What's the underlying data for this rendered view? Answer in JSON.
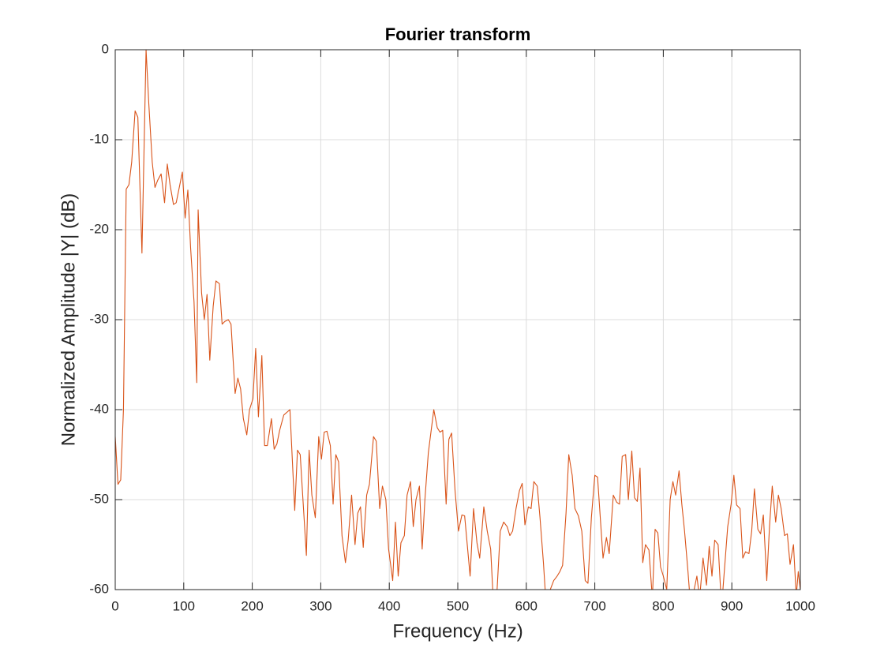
{
  "chart_data": {
    "type": "line",
    "title": "Fourier transform",
    "xlabel": "Frequency (Hz)",
    "ylabel": "Normalized Amplitude |Y| (dB)",
    "x": [
      0,
      4,
      8,
      12,
      16,
      20,
      24,
      29,
      33,
      39,
      45,
      49,
      54,
      58,
      62,
      67,
      72,
      76,
      80,
      85,
      89,
      98,
      102,
      106,
      110,
      115,
      119,
      121,
      126,
      130,
      134,
      138,
      143,
      147,
      152,
      156,
      160,
      165,
      169,
      175,
      179,
      183,
      187,
      192,
      196,
      201,
      205,
      209,
      214,
      218,
      222,
      228,
      232,
      236,
      240,
      246,
      255,
      262,
      266,
      270,
      274,
      279,
      283,
      287,
      292,
      297,
      301,
      305,
      309,
      314,
      318,
      322,
      326,
      331,
      336,
      340,
      345,
      350,
      354,
      358,
      362,
      367,
      371,
      377,
      381,
      386,
      390,
      395,
      399,
      405,
      409,
      413,
      417,
      422,
      426,
      431,
      435,
      439,
      444,
      448,
      452,
      457,
      465,
      470,
      474,
      478,
      483,
      487,
      491,
      496,
      501,
      506,
      510,
      518,
      523,
      528,
      532,
      538,
      543,
      548,
      553,
      557,
      562,
      567,
      572,
      576,
      580,
      585,
      590,
      594,
      598,
      603,
      607,
      611,
      616,
      620,
      625,
      630,
      635,
      640,
      645,
      649,
      653,
      658,
      662,
      667,
      671,
      676,
      681,
      686,
      690,
      695,
      700,
      704,
      708,
      712,
      717,
      721,
      727,
      732,
      736,
      740,
      745,
      749,
      754,
      758,
      762,
      766,
      770,
      774,
      779,
      784,
      788,
      792,
      796,
      800,
      805,
      810,
      814,
      818,
      823,
      827,
      831,
      836,
      840,
      845,
      849,
      853,
      858,
      863,
      867,
      871,
      875,
      880,
      885,
      889,
      894,
      899,
      903,
      907,
      912,
      916,
      920,
      925,
      929,
      933,
      938,
      942,
      946,
      951,
      955,
      959,
      964,
      968,
      972,
      977,
      981,
      985,
      990,
      994,
      997,
      1000
    ],
    "values": [
      -43,
      -48.3,
      -47.8,
      -40,
      -15.5,
      -15,
      -12.5,
      -6.8,
      -7.5,
      -22.6,
      0,
      -6,
      -12.5,
      -15.3,
      -14.5,
      -13.8,
      -17,
      -12.7,
      -15,
      -17.2,
      -17,
      -13.6,
      -18.7,
      -15.6,
      -22,
      -28,
      -37,
      -17.8,
      -27,
      -30,
      -27.2,
      -34.5,
      -28.5,
      -25.7,
      -26,
      -30.5,
      -30.2,
      -30,
      -30.5,
      -38.2,
      -36.5,
      -37.7,
      -41,
      -42.8,
      -40,
      -38.8,
      -33.2,
      -40.8,
      -34,
      -44,
      -44,
      -41,
      -44.4,
      -43.8,
      -42.3,
      -40.6,
      -40,
      -51.2,
      -44.5,
      -45,
      -50,
      -56.2,
      -44.5,
      -49.5,
      -52,
      -43,
      -45.5,
      -42.5,
      -42.4,
      -44,
      -50.5,
      -45,
      -45.8,
      -54,
      -57,
      -54.5,
      -49.5,
      -55,
      -51.5,
      -50.8,
      -55.3,
      -49.5,
      -48.3,
      -43,
      -43.5,
      -51,
      -48.5,
      -50,
      -55.5,
      -59,
      -52.5,
      -58.5,
      -54.8,
      -54,
      -49.5,
      -48,
      -53,
      -50,
      -48.5,
      -55.5,
      -50,
      -44.8,
      -40,
      -42,
      -42.5,
      -42.3,
      -50.5,
      -43.3,
      -42.6,
      -49,
      -53.5,
      -51.7,
      -51.8,
      -58.5,
      -51,
      -54.8,
      -56.5,
      -50.8,
      -53.5,
      -55.5,
      -63,
      -60.5,
      -53.5,
      -52.5,
      -53,
      -54,
      -53.5,
      -51,
      -49,
      -48.2,
      -52.8,
      -50.8,
      -51,
      -48,
      -48.5,
      -52,
      -57,
      -63,
      -60,
      -59,
      -58.5,
      -58,
      -57.3,
      -51.5,
      -45,
      -47.3,
      -51,
      -51.8,
      -53.5,
      -59,
      -59.3,
      -52,
      -47.3,
      -47.5,
      -52,
      -56.5,
      -54.2,
      -56,
      -49.5,
      -50.3,
      -50.5,
      -45.2,
      -45,
      -50,
      -44.6,
      -49.8,
      -50.2,
      -46.5,
      -57,
      -55,
      -55.6,
      -61,
      -53.3,
      -53.7,
      -57.5,
      -58.5,
      -60,
      -50,
      -48,
      -49.5,
      -46.8,
      -50.5,
      -53.5,
      -58,
      -62,
      -60,
      -58.5,
      -61,
      -56.5,
      -59.5,
      -55.2,
      -58.5,
      -54.5,
      -55,
      -62,
      -58,
      -53,
      -50.5,
      -47.3,
      -50.6,
      -51,
      -56.5,
      -55.8,
      -56,
      -53.5,
      -48.8,
      -53.3,
      -53.8,
      -51.7,
      -59,
      -53,
      -48.5,
      -52.5,
      -49.5,
      -51,
      -54,
      -53.8,
      -57.2,
      -55,
      -60.7,
      -58,
      -60
    ],
    "color": "#d95319",
    "xlim": [
      0,
      1000
    ],
    "ylim": [
      -60,
      0
    ],
    "xticks": [
      0,
      100,
      200,
      300,
      400,
      500,
      600,
      700,
      800,
      900,
      1000
    ],
    "yticks": [
      -60,
      -50,
      -40,
      -30,
      -20,
      -10,
      0
    ],
    "grid": true
  }
}
